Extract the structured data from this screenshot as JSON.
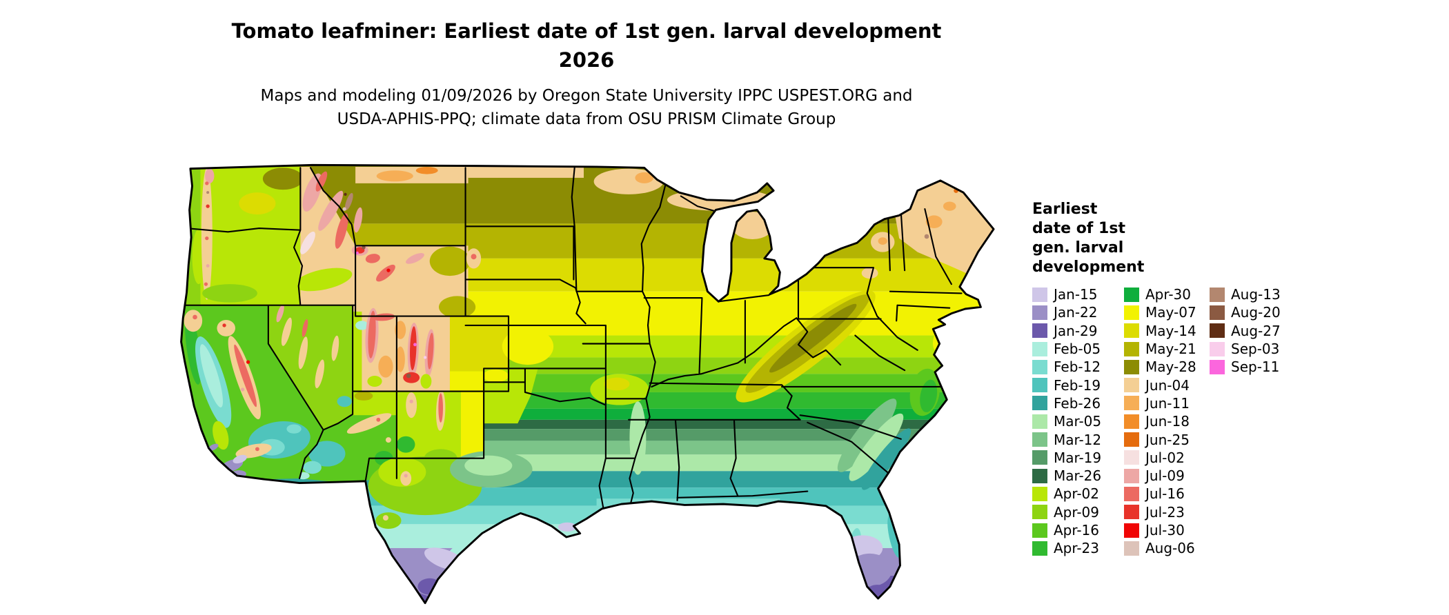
{
  "title": {
    "line1": "Tomato leafminer: Earliest date of 1st gen. larval development",
    "line2": "2026"
  },
  "subtitle": {
    "line1": "Maps and modeling 01/09/2026 by Oregon State University IPPC USPEST.ORG and",
    "line2": "USDA-APHIS-PPQ; climate data from OSU PRISM Climate Group"
  },
  "map": {
    "depicts": "Continental United States choropleth of earliest date of first generation larval development, with state boundaries"
  },
  "legend": {
    "title": "Earliest\ndate of 1st\ngen. larval\ndevelopment",
    "columns": [
      [
        {
          "label": "Jan-15",
          "color": "#cfc6e8"
        },
        {
          "label": "Jan-22",
          "color": "#9b8fc6"
        },
        {
          "label": "Jan-29",
          "color": "#6c59ab"
        },
        {
          "label": "Feb-05",
          "color": "#aaeedd"
        },
        {
          "label": "Feb-12",
          "color": "#7adcd0"
        },
        {
          "label": "Feb-19",
          "color": "#4fc4bc"
        },
        {
          "label": "Feb-26",
          "color": "#31a39d"
        },
        {
          "label": "Mar-05",
          "color": "#ace8a8"
        },
        {
          "label": "Mar-12",
          "color": "#7cc489"
        },
        {
          "label": "Mar-19",
          "color": "#559b68"
        },
        {
          "label": "Mar-26",
          "color": "#2d6b44"
        },
        {
          "label": "Apr-02",
          "color": "#b8e607"
        },
        {
          "label": "Apr-09",
          "color": "#8ed412"
        },
        {
          "label": "Apr-16",
          "color": "#5cc81e"
        },
        {
          "label": "Apr-23",
          "color": "#30ba30"
        }
      ],
      [
        {
          "label": "Apr-30",
          "color": "#0fae3c"
        },
        {
          "label": "May-07",
          "color": "#f2f202"
        },
        {
          "label": "May-14",
          "color": "#dcdc02"
        },
        {
          "label": "May-21",
          "color": "#b4b402"
        },
        {
          "label": "May-28",
          "color": "#8c8c04"
        },
        {
          "label": "Jun-04",
          "color": "#f4cf94"
        },
        {
          "label": "Jun-11",
          "color": "#f6ae56"
        },
        {
          "label": "Jun-18",
          "color": "#f28d28"
        },
        {
          "label": "Jun-25",
          "color": "#e56c0e"
        },
        {
          "label": "Jul-02",
          "color": "#f6e0e0"
        },
        {
          "label": "Jul-09",
          "color": "#eda7a5"
        },
        {
          "label": "Jul-16",
          "color": "#ec6a61"
        },
        {
          "label": "Jul-23",
          "color": "#e8332a"
        },
        {
          "label": "Jul-30",
          "color": "#f00505"
        },
        {
          "label": "Aug-06",
          "color": "#ddc3b9"
        }
      ],
      [
        {
          "label": "Aug-13",
          "color": "#b3876f"
        },
        {
          "label": "Aug-20",
          "color": "#8b5a42"
        },
        {
          "label": "Aug-27",
          "color": "#5f2d14"
        },
        {
          "label": "Sep-03",
          "color": "#f9cdeb"
        },
        {
          "label": "Sep-11",
          "color": "#fb66dd"
        }
      ]
    ]
  }
}
